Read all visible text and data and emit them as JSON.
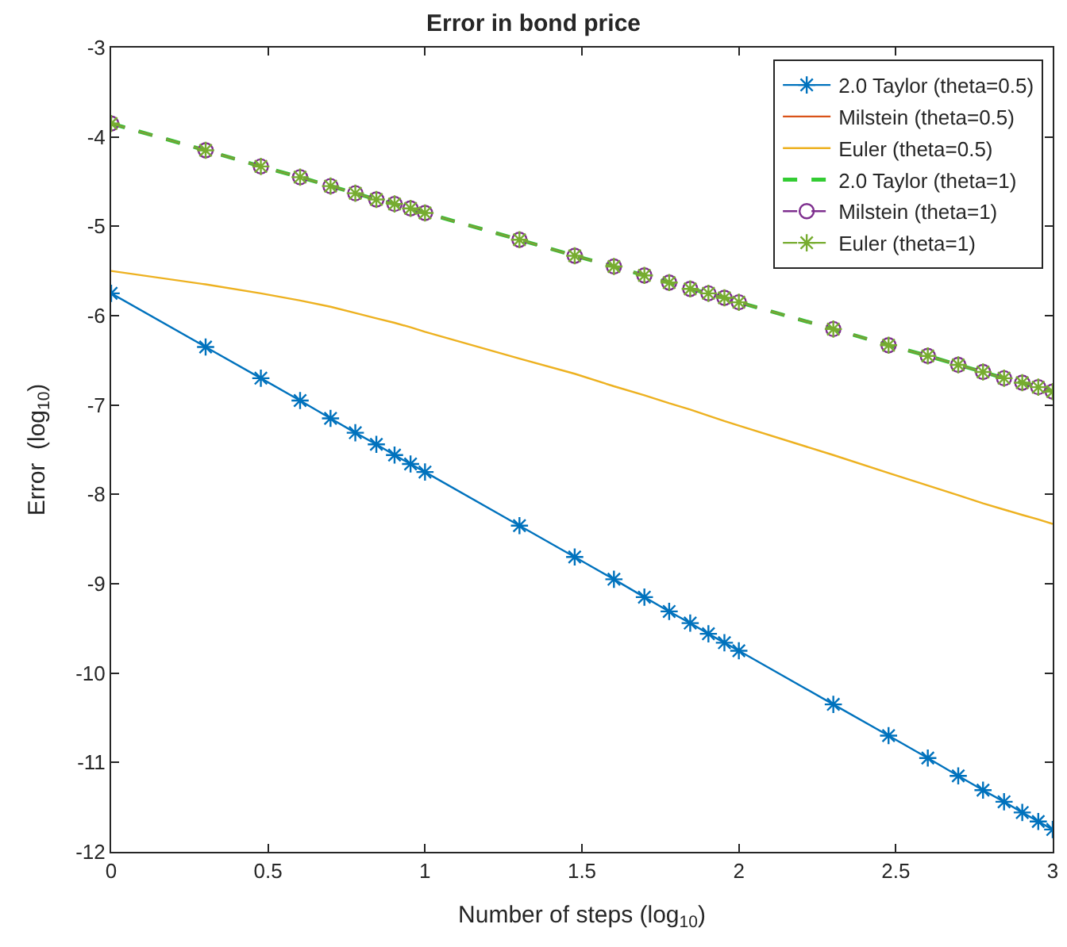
{
  "chart_data": {
    "type": "line",
    "title": "Error in bond price",
    "xlabel": "Number of steps (log$_{10}$)",
    "ylabel": "Error  (log$_{10}$)",
    "x": [
      0,
      0.301,
      0.477,
      0.602,
      0.699,
      0.778,
      0.845,
      0.903,
      0.954,
      1,
      1.301,
      1.477,
      1.602,
      1.699,
      1.778,
      1.845,
      1.903,
      1.954,
      2,
      2.301,
      2.477,
      2.602,
      2.699,
      2.778,
      2.845,
      2.903,
      2.954,
      3
    ],
    "series": [
      {
        "name": "2.0 Taylor (theta=0.5)",
        "color": "#0072bd",
        "marker": "cross",
        "line_style": "solid",
        "values": [
          -5.75,
          -6.35,
          -6.7,
          -6.95,
          -7.15,
          -7.31,
          -7.44,
          -7.56,
          -7.66,
          -7.75,
          -8.35,
          -8.7,
          -8.95,
          -9.15,
          -9.31,
          -9.44,
          -9.56,
          -9.66,
          -9.75,
          -10.35,
          -10.7,
          -10.95,
          -11.15,
          -11.31,
          -11.44,
          -11.56,
          -11.66,
          -11.75
        ]
      },
      {
        "name": "Milstein (theta=0.5)",
        "color": "#d95319",
        "marker": "none",
        "line_style": "solid",
        "values": [
          null,
          null,
          null,
          null,
          null,
          null,
          null,
          null,
          null,
          null,
          null,
          null,
          null,
          null,
          null,
          null,
          null,
          null,
          null,
          null,
          null,
          null,
          null,
          null,
          null,
          null,
          null,
          null
        ]
      },
      {
        "name": "Euler (theta=0.5)",
        "color": "#edb120",
        "marker": "none",
        "line_style": "solid",
        "values": [
          -5.5,
          -5.65,
          -5.75,
          -5.83,
          -5.9,
          -5.97,
          -6.03,
          -6.08,
          -6.13,
          -6.18,
          -6.48,
          -6.65,
          -6.79,
          -6.89,
          -6.98,
          -7.05,
          -7.12,
          -7.18,
          -7.23,
          -7.56,
          -7.76,
          -7.9,
          -8.01,
          -8.1,
          -8.17,
          -8.23,
          -8.28,
          -8.33
        ]
      },
      {
        "name": "2.0 Taylor (theta=1)",
        "color": "#33cc33",
        "marker": "none",
        "line_style": "dashed",
        "values": [
          -3.85,
          -4.15,
          -4.33,
          -4.45,
          -4.55,
          -4.63,
          -4.7,
          -4.75,
          -4.8,
          -4.85,
          -5.15,
          -5.33,
          -5.45,
          -5.55,
          -5.63,
          -5.7,
          -5.75,
          -5.8,
          -5.85,
          -6.15,
          -6.33,
          -6.45,
          -6.55,
          -6.63,
          -6.7,
          -6.75,
          -6.8,
          -6.85
        ]
      },
      {
        "name": "Milstein (theta=1)",
        "color": "#7e2f8e",
        "marker": "circle",
        "line_style": "dashed",
        "values": [
          -3.85,
          -4.15,
          -4.33,
          -4.45,
          -4.55,
          -4.63,
          -4.7,
          -4.75,
          -4.8,
          -4.85,
          -5.15,
          -5.33,
          -5.45,
          -5.55,
          -5.63,
          -5.7,
          -5.75,
          -5.8,
          -5.85,
          -6.15,
          -6.33,
          -6.45,
          -6.55,
          -6.63,
          -6.7,
          -6.75,
          -6.8,
          -6.85
        ]
      },
      {
        "name": "Euler (theta=1)",
        "color": "#77ac30",
        "marker": "cross",
        "line_style": "dashed",
        "values": [
          -3.85,
          -4.15,
          -4.33,
          -4.45,
          -4.55,
          -4.63,
          -4.7,
          -4.75,
          -4.8,
          -4.85,
          -5.15,
          -5.33,
          -5.45,
          -5.55,
          -5.63,
          -5.7,
          -5.75,
          -5.8,
          -5.85,
          -6.15,
          -6.33,
          -6.45,
          -6.55,
          -6.63,
          -6.7,
          -6.75,
          -6.8,
          -6.85
        ]
      }
    ],
    "xlim": [
      0,
      3
    ],
    "xticks": [
      0,
      0.5,
      1,
      1.5,
      2,
      2.5,
      3
    ],
    "ylim": [
      -12,
      -3
    ],
    "yticks": [
      -12,
      -11,
      -10,
      -9,
      -8,
      -7,
      -6,
      -5,
      -4,
      -3
    ],
    "legend": "top right"
  }
}
